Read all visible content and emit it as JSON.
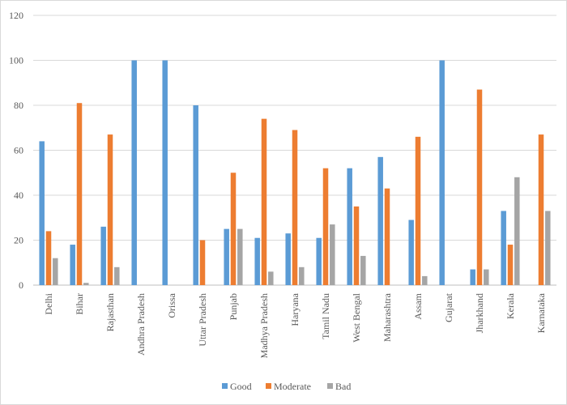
{
  "chart_data": {
    "type": "bar",
    "title": "",
    "xlabel": "",
    "ylabel": "",
    "ylim": [
      0,
      120
    ],
    "yticks": [
      0,
      20,
      40,
      60,
      80,
      100,
      120
    ],
    "grid": true,
    "legend_position": "bottom",
    "categories": [
      "Delhi",
      "Bihar",
      "Rajasthan",
      "Andhra Pradesh",
      "Orissa",
      "Uttar Pradesh",
      "Punjab",
      "Madhya Pradesh",
      "Haryana",
      "Tamil Nadu",
      "West Bengal",
      "Maharashtra",
      "Assam",
      "Gujarat",
      "Jharkhand",
      "Kerala",
      "Karnataka"
    ],
    "series": [
      {
        "name": "Good",
        "color": "#5b9bd5",
        "values": [
          64,
          18,
          26,
          100,
          100,
          80,
          25,
          21,
          23,
          21,
          52,
          57,
          29,
          100,
          7,
          33,
          0
        ]
      },
      {
        "name": "Moderate",
        "color": "#ed7d31",
        "values": [
          24,
          81,
          67,
          0,
          0,
          20,
          50,
          74,
          69,
          52,
          35,
          43,
          66,
          0,
          87,
          18,
          67
        ]
      },
      {
        "name": "Bad",
        "color": "#a5a5a5",
        "values": [
          12,
          1,
          8,
          0,
          0,
          0,
          25,
          6,
          8,
          27,
          13,
          0,
          4,
          0,
          7,
          48,
          33
        ]
      }
    ]
  }
}
